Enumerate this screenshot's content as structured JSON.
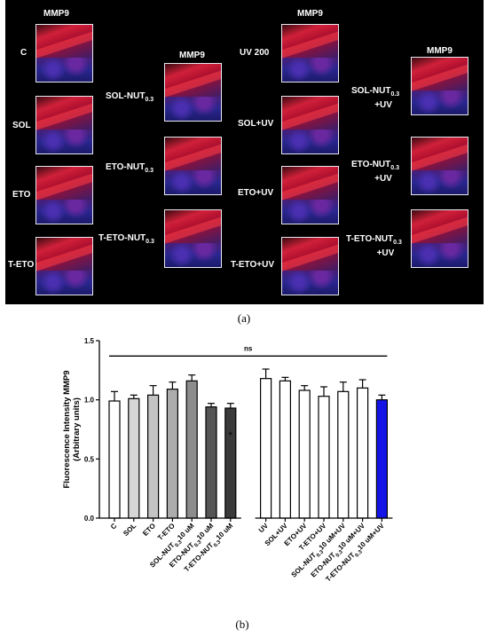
{
  "panel_a": {
    "caption": "(a)",
    "column_headers": [
      "MMP9",
      "MMP9",
      "MMP9",
      "MMP9"
    ],
    "labels": {
      "c": "C",
      "sol": "SOL",
      "eto": "ETO",
      "teto": "T-ETO",
      "solnut_main": "SOL-NUT",
      "solnut_sub": "0.3",
      "etonut_main": "ETO-NUT",
      "etonut_sub": "0.3",
      "tetonut_main": "T-ETO-NUT",
      "tetonut_sub": "0.3",
      "uv200": "UV 200",
      "soluv": "SOL+UV",
      "etouv": "ETO+UV",
      "tetouv": "T-ETO+UV",
      "solnutuv_main": "SOL-NUT",
      "solnutuv_sub": "0.3",
      "solnutuv_suffix": "+UV",
      "etonutuv_main": "ETO-NUT",
      "etonutuv_sub": "0.3",
      "etonutuv_suffix": "+UV",
      "tetonutuv_main": "T-ETO-NUT",
      "tetonutuv_sub": "0.3",
      "tetonutuv_suffix": "+UV"
    }
  },
  "panel_b": {
    "caption": "(b)"
  },
  "chart_data": {
    "type": "bar",
    "ylabel_line1": "Fluorescence Intensity MMP9",
    "ylabel_line2": "(Arbitrary units)",
    "ylim": [
      0,
      1.5
    ],
    "yticks": [
      "0.0",
      "0.5",
      "1.0",
      "1.5"
    ],
    "significance_label": "ns",
    "star_label": "*",
    "categories": [
      {
        "main": "C",
        "sub": "",
        "suffix": ""
      },
      {
        "main": "SOL",
        "sub": "",
        "suffix": ""
      },
      {
        "main": "ETO",
        "sub": "",
        "suffix": ""
      },
      {
        "main": "T-ETO",
        "sub": "",
        "suffix": ""
      },
      {
        "main": "SOL-NUT",
        "sub": "0.3",
        "suffix": "10 uM"
      },
      {
        "main": "ETO-NUT",
        "sub": "0.3",
        "suffix": "10 uM"
      },
      {
        "main": "T-ETO-NUT",
        "sub": "0.3",
        "suffix": "10 uM"
      },
      {
        "main": "UV",
        "sub": "",
        "suffix": ""
      },
      {
        "main": "SOL+UV",
        "sub": "",
        "suffix": ""
      },
      {
        "main": "ETO+UV",
        "sub": "",
        "suffix": ""
      },
      {
        "main": "T-ETO+UV",
        "sub": "",
        "suffix": ""
      },
      {
        "main": "SOL-NUT",
        "sub": "0.3",
        "suffix": "10 uM+UV"
      },
      {
        "main": "ETO-NUT",
        "sub": "0.3",
        "suffix": "10 uM+UV"
      },
      {
        "main": "T-ETO-NUT",
        "sub": "0.3",
        "suffix": "10 uM+UV"
      }
    ],
    "values": [
      0.99,
      1.01,
      1.04,
      1.09,
      1.16,
      0.94,
      0.93,
      1.18,
      1.16,
      1.08,
      1.03,
      1.07,
      1.1,
      1.0
    ],
    "errors": [
      0.08,
      0.03,
      0.08,
      0.06,
      0.05,
      0.03,
      0.04,
      0.08,
      0.03,
      0.04,
      0.08,
      0.08,
      0.07,
      0.04
    ],
    "colors": [
      "#ffffff",
      "#d6d6d6",
      "#c4c4c4",
      "#acacac",
      "#8c8c8c",
      "#555555",
      "#3a3a3a",
      "#ffffff",
      "#ffffff",
      "#ffffff",
      "#ffffff",
      "#ffffff",
      "#ffffff",
      "#1414e6"
    ],
    "star_index": 6
  }
}
